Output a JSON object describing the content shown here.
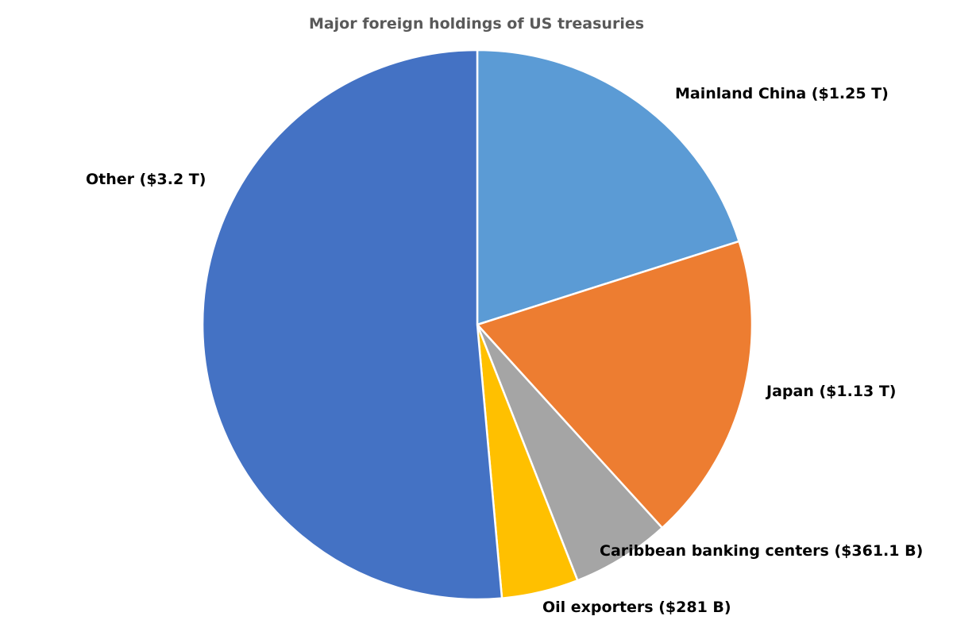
{
  "chart_data": {
    "type": "pie",
    "title": "Major foreign holdings of US treasuries",
    "slices": [
      {
        "name": "Mainland China",
        "value": 1250,
        "label": "Mainland China ($1.25 T)",
        "color": "#5B9BD5"
      },
      {
        "name": "Japan",
        "value": 1130,
        "label": "Japan ($1.13 T)",
        "color": "#ED7D31"
      },
      {
        "name": "Caribbean banking centers",
        "value": 361.1,
        "label": "Caribbean banking centers ($361.1 B)",
        "color": "#A5A5A5"
      },
      {
        "name": "Oil exporters",
        "value": 281,
        "label": "Oil exporters ($281 B)",
        "color": "#FFC000"
      },
      {
        "name": "Other",
        "value": 3200,
        "label": "Other ($3.2 T)",
        "color": "#4472C4"
      }
    ],
    "start_angle": "12 o'clock",
    "direction": "clockwise",
    "legend": "none"
  }
}
